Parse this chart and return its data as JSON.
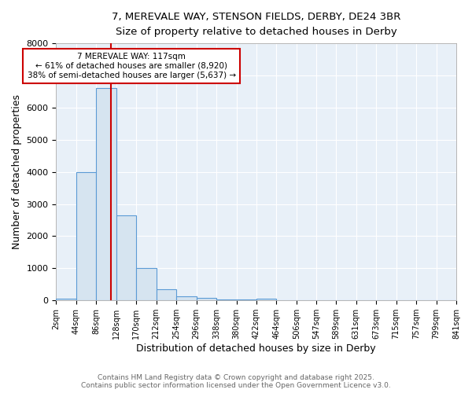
{
  "title1": "7, MEREVALE WAY, STENSON FIELDS, DERBY, DE24 3BR",
  "title2": "Size of property relative to detached houses in Derby",
  "xlabel": "Distribution of detached houses by size in Derby",
  "ylabel": "Number of detached properties",
  "bin_edges": [
    2,
    44,
    86,
    128,
    170,
    212,
    254,
    296,
    338,
    380,
    422,
    464,
    506,
    547,
    589,
    631,
    673,
    715,
    757,
    799,
    841
  ],
  "bar_heights": [
    50,
    4000,
    6600,
    2650,
    1000,
    350,
    130,
    70,
    40,
    40,
    60,
    8,
    4,
    2,
    1,
    1,
    1,
    1,
    1,
    1
  ],
  "bar_color": "#d6e4f0",
  "bar_edge_color": "#5b9bd5",
  "property_size": 117,
  "vline_color": "#cc0000",
  "annotation_text": "7 MEREVALE WAY: 117sqm\n← 61% of detached houses are smaller (8,920)\n38% of semi-detached houses are larger (5,637) →",
  "annotation_box_color": "#ffffff",
  "annotation_box_edge_color": "#cc0000",
  "ylim": [
    0,
    8000
  ],
  "yticks": [
    0,
    1000,
    2000,
    3000,
    4000,
    5000,
    6000,
    7000,
    8000
  ],
  "footer1": "Contains HM Land Registry data © Crown copyright and database right 2025.",
  "footer2": "Contains public sector information licensed under the Open Government Licence v3.0.",
  "bg_color": "#ffffff",
  "plot_bg_color": "#e8f0f8"
}
